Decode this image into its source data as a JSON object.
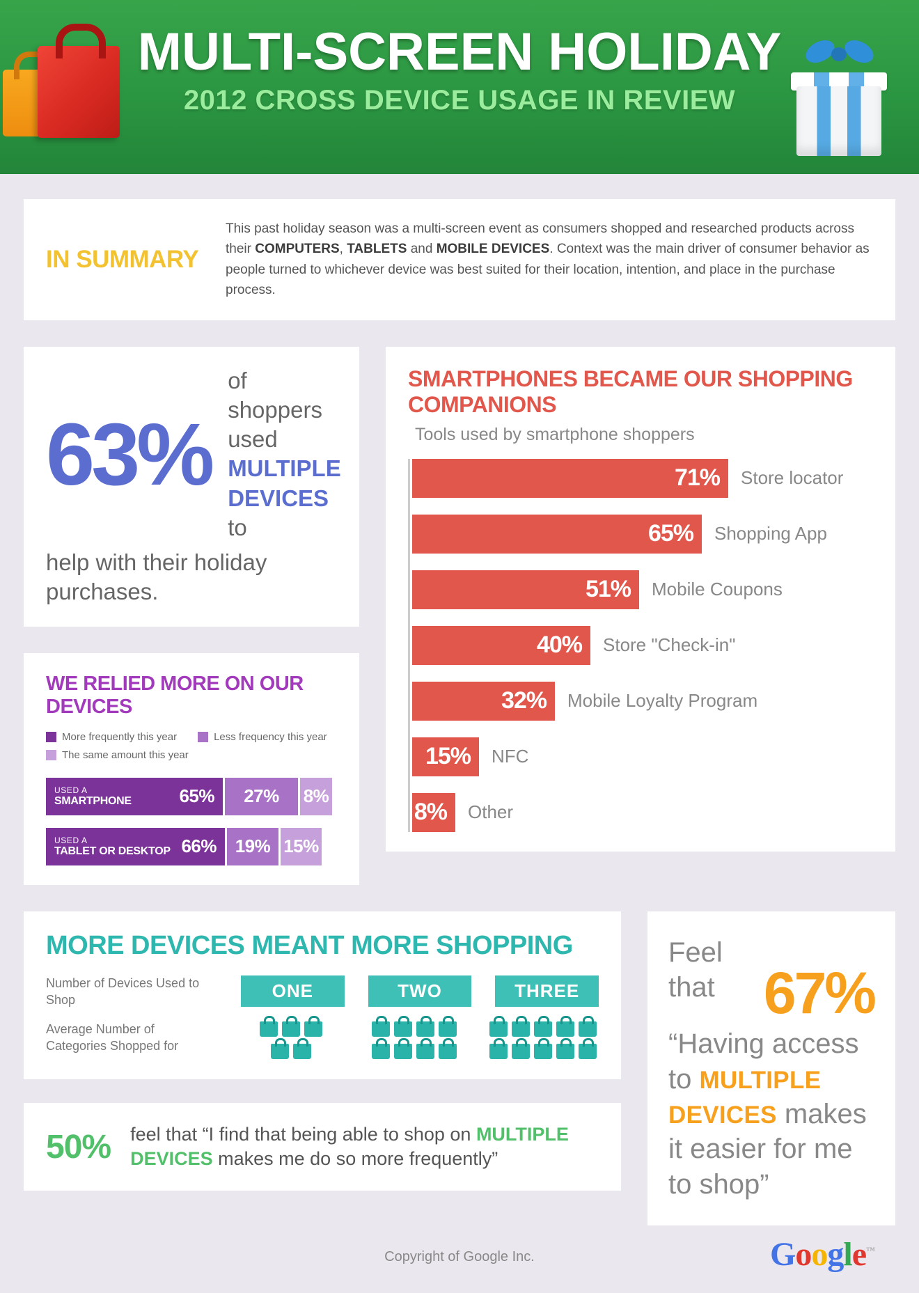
{
  "header": {
    "title": "MULTI-SCREEN HOLIDAY",
    "subtitle": "2012 CROSS DEVICE USAGE IN REVIEW"
  },
  "summary": {
    "label": "IN SUMMARY",
    "segments": [
      {
        "text": "This past holiday season was a multi-screen event as consumers shopped and researched products across their ",
        "bold": false
      },
      {
        "text": "COMPUTERS",
        "bold": true
      },
      {
        "text": ", ",
        "bold": false
      },
      {
        "text": "TABLETS",
        "bold": true
      },
      {
        "text": " and ",
        "bold": false
      },
      {
        "text": "MOBILE DEVICES",
        "bold": true
      },
      {
        "text": ". Context was the main driver of consumer behavior as people turned to whichever device was best suited for their location, intention, and place in the purchase process.",
        "bold": false
      }
    ]
  },
  "devices63": {
    "stat": "63%",
    "top_segments": [
      {
        "text": "of shoppers used ",
        "bold": false
      },
      {
        "text": "MULTIPLE DEVICES",
        "bold": true,
        "color": "#5b6ed0"
      },
      {
        "text": " to",
        "bold": false
      }
    ],
    "bottom_segments": [
      {
        "text": "help with their holiday purchases.",
        "bold": false
      }
    ]
  },
  "chart_data": [
    {
      "type": "bar",
      "orientation": "horizontal",
      "title": "SMARTPHONES BECAME OUR SHOPPING COMPANIONS",
      "subtitle": "Tools used by smartphone shoppers",
      "categories": [
        "Store locator",
        "Shopping App",
        "Mobile Coupons",
        "Store \"Check-in\"",
        "Mobile Loyalty Program",
        "NFC",
        "Other"
      ],
      "values": [
        71,
        65,
        51,
        40,
        32,
        15,
        8
      ],
      "value_suffix": "%",
      "bar_color": "#e2574c",
      "xlim": [
        0,
        100
      ],
      "grid": false,
      "legend_position": "none"
    },
    {
      "type": "bar",
      "subtype": "stacked-horizontal",
      "title": "WE RELIED MORE ON OUR DEVICES",
      "legend": [
        {
          "label": "More frequently this year",
          "color": "#7b3399"
        },
        {
          "label": "Less frequency this year",
          "color": "#a872c6"
        },
        {
          "label": "The same amount this year",
          "color": "#c6a0da"
        }
      ],
      "rows": [
        {
          "label_line1": "USED A",
          "label_line2": "SMARTPHONE",
          "values": [
            65,
            27,
            8
          ]
        },
        {
          "label_line1": "USED A",
          "label_line2": "TABLET OR DESKTOP",
          "values": [
            66,
            19,
            15
          ]
        }
      ],
      "value_suffix": "%",
      "xlim": [
        0,
        100
      ]
    },
    {
      "type": "table",
      "subtype": "pictograph",
      "title": "MORE DEVICES MEANT MORE SHOPPING",
      "row_label": "Number of Devices Used to Shop",
      "value_label": "Average Number of Categories Shopped for",
      "categories": [
        "ONE",
        "TWO",
        "THREE"
      ],
      "values": [
        5,
        8,
        10
      ],
      "icon": "shopping-bag",
      "icon_color": "#2ab3a9"
    }
  ],
  "access67": {
    "pre": "Feel that “Having access to",
    "stat": "67%",
    "highlight": "MULTIPLE DEVICES",
    "post": "makes it easier for me to shop”"
  },
  "frequent50": {
    "stat": "50%",
    "segments": [
      {
        "text": "feel that “I find that being able to shop on ",
        "bold": false
      },
      {
        "text": "MULTIPLE DEVICES",
        "bold": true,
        "color": "#52c06a"
      },
      {
        "text": " makes me do so more frequently”",
        "bold": false
      }
    ]
  },
  "footer": {
    "copyright": "Copyright of Google Inc.",
    "logo_letters": [
      {
        "ch": "G",
        "color": "#4274e8"
      },
      {
        "ch": "o",
        "color": "#e0382e"
      },
      {
        "ch": "o",
        "color": "#f4b400"
      },
      {
        "ch": "g",
        "color": "#4274e8"
      },
      {
        "ch": "l",
        "color": "#34a853"
      },
      {
        "ch": "e",
        "color": "#e0382e"
      }
    ],
    "trademark": "™"
  }
}
